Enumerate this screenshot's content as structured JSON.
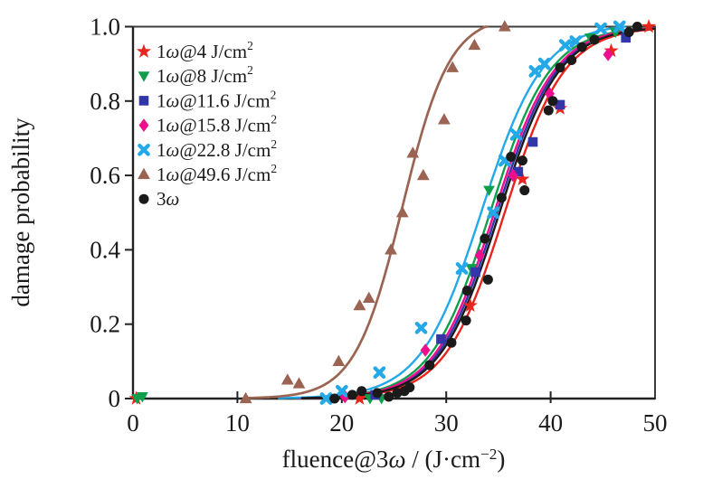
{
  "figure": {
    "background": "#ffffff",
    "frame_color": "#3c3c3c",
    "text_color": "#1a1a1a"
  },
  "chart_data": {
    "type": "scatter",
    "title": "",
    "xlabel": "fluence@3ω / (J·cm⁻²)",
    "ylabel": "damage probability",
    "xlim": [
      0,
      50
    ],
    "ylim": [
      0,
      1.0
    ],
    "x_ticks": [
      0,
      10,
      20,
      30,
      40,
      50
    ],
    "x_tick_labels": [
      "0",
      "10",
      "20",
      "30",
      "40",
      "50"
    ],
    "y_ticks": [
      0,
      0.2,
      0.4,
      0.6,
      0.8,
      1.0
    ],
    "y_tick_labels": [
      "0",
      "0.2",
      "0.4",
      "0.6",
      "0.8",
      "1.0"
    ],
    "grid": false,
    "legend_position": "upper left inside",
    "curve_model": "logistic p(x) = amp / (1 + exp(-k (x - x0))), clamped to 1",
    "series": [
      {
        "id": "1w-4",
        "label": "1ω@4 J/cm²",
        "marker": "star",
        "color": "#e8251d",
        "curve": {
          "x0": 35.6,
          "k": 0.35,
          "amp": 1.0
        },
        "points": [
          [
            0.3,
            0
          ],
          [
            21.7,
            0
          ],
          [
            32.3,
            0.25
          ],
          [
            37.3,
            0.59
          ],
          [
            40.9,
            0.78
          ],
          [
            45.8,
            0.935
          ],
          [
            49.4,
            1.0
          ]
        ]
      },
      {
        "id": "1w-8",
        "label": "1ω@8 J/cm²",
        "marker": "triangle-down",
        "color": "#0f9e4b",
        "curve": {
          "x0": 34.2,
          "k": 0.35,
          "amp": 1.0
        },
        "points": [
          [
            0.4,
            0
          ],
          [
            0.9,
            0.005
          ],
          [
            22.7,
            0
          ],
          [
            23.8,
            0
          ],
          [
            32.4,
            0.35
          ],
          [
            34.1,
            0.56
          ],
          [
            43.8,
            0.97
          ],
          [
            46.2,
            0.985
          ]
        ]
      },
      {
        "id": "1w-11.6",
        "label": "1ω@11.6 J/cm²",
        "marker": "square",
        "color": "#3236a8",
        "curve": {
          "x0": 34.85,
          "k": 0.35,
          "amp": 1.0
        },
        "points": [
          [
            23.2,
            0.01
          ],
          [
            29.5,
            0.16
          ],
          [
            32.8,
            0.34
          ],
          [
            36.9,
            0.61
          ],
          [
            38.3,
            0.69
          ],
          [
            40.9,
            0.79
          ],
          [
            47.2,
            0.97
          ]
        ]
      },
      {
        "id": "1w-15.8",
        "label": "1ω@15.8 J/cm²",
        "marker": "diamond",
        "color": "#ee0e8d",
        "curve": {
          "x0": 34.6,
          "k": 0.35,
          "amp": 1.0
        },
        "points": [
          [
            20.3,
            0.005
          ],
          [
            28.0,
            0.13
          ],
          [
            33.2,
            0.385
          ],
          [
            36.4,
            0.6
          ],
          [
            39.9,
            0.82
          ],
          [
            45.5,
            0.925
          ]
        ]
      },
      {
        "id": "1w-22.8",
        "label": "1ω@22.8 J/cm²",
        "marker": "x",
        "color": "#23a8e8",
        "curve": {
          "x0": 33.4,
          "k": 0.34,
          "amp": 1.01
        },
        "points": [
          [
            18.5,
            0
          ],
          [
            20.0,
            0.02
          ],
          [
            23.6,
            0.07
          ],
          [
            27.6,
            0.19
          ],
          [
            31.5,
            0.35
          ],
          [
            34.5,
            0.5
          ],
          [
            35.6,
            0.64
          ],
          [
            36.7,
            0.71
          ],
          [
            38.5,
            0.88
          ],
          [
            39.4,
            0.9
          ],
          [
            41.4,
            0.95
          ],
          [
            42.4,
            0.96
          ],
          [
            44.8,
            0.995
          ],
          [
            46.6,
            1.0
          ]
        ]
      },
      {
        "id": "1w-49.6",
        "label": "1ω@49.6 J/cm²",
        "marker": "triangle-up",
        "color": "#9a6352",
        "curve": {
          "x0": 25.8,
          "k": 0.44,
          "amp": 1.03
        },
        "points": [
          [
            10.8,
            0
          ],
          [
            14.8,
            0.05
          ],
          [
            15.9,
            0.04
          ],
          [
            19.7,
            0.1
          ],
          [
            21.7,
            0.25
          ],
          [
            22.6,
            0.27
          ],
          [
            24.7,
            0.4
          ],
          [
            25.8,
            0.5
          ],
          [
            26.8,
            0.66
          ],
          [
            27.8,
            0.6
          ],
          [
            29.8,
            0.75
          ],
          [
            30.6,
            0.89
          ],
          [
            32.7,
            0.95
          ],
          [
            35.6,
            1.0
          ]
        ]
      },
      {
        "id": "3w",
        "label": "3ω",
        "marker": "circle",
        "color": "#1a1a1a",
        "curve": {
          "x0": 35.1,
          "k": 0.35,
          "amp": 1.0
        },
        "points": [
          [
            19.3,
            0
          ],
          [
            21.0,
            0.01
          ],
          [
            21.9,
            0.02
          ],
          [
            23.4,
            0.015
          ],
          [
            24.5,
            0.005
          ],
          [
            25.3,
            0.015
          ],
          [
            26.0,
            0.02
          ],
          [
            26.5,
            0.03
          ],
          [
            28.4,
            0.09
          ],
          [
            30.5,
            0.15
          ],
          [
            31.9,
            0.21
          ],
          [
            32.0,
            0.29
          ],
          [
            34.0,
            0.32
          ],
          [
            33.7,
            0.43
          ],
          [
            35.3,
            0.54
          ],
          [
            36.2,
            0.65
          ],
          [
            37.3,
            0.64
          ],
          [
            37.5,
            0.56
          ],
          [
            39.8,
            0.775
          ],
          [
            40.2,
            0.8
          ],
          [
            40.9,
            0.89
          ],
          [
            42.0,
            0.91
          ],
          [
            43.0,
            0.945
          ],
          [
            44.2,
            0.965
          ],
          [
            47.5,
            0.985
          ],
          [
            48.3,
            1.0
          ]
        ]
      }
    ]
  }
}
